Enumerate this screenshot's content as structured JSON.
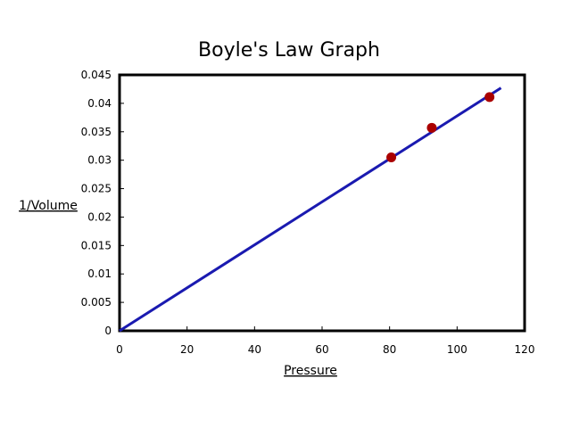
{
  "chart_data": {
    "type": "scatter",
    "title": "Boyle's Law Graph",
    "xlabel": "Pressure",
    "ylabel": "1/Volume",
    "xlim": [
      0,
      120
    ],
    "ylim": [
      0,
      0.045
    ],
    "x_ticks": [
      "0",
      "20",
      "40",
      "60",
      "80",
      "100",
      "120"
    ],
    "y_ticks": [
      "0",
      "0.005",
      "0.01",
      "0.015",
      "0.02",
      "0.025",
      "0.03",
      "0.035",
      "0.04",
      "0.045"
    ],
    "grid": false,
    "points": [
      {
        "x": 80.5,
        "y": 0.0305
      },
      {
        "x": 92.5,
        "y": 0.0357
      },
      {
        "x": 109.6,
        "y": 0.0411
      }
    ],
    "fit_line": {
      "x": [
        0,
        113
      ],
      "y": [
        0,
        0.0427
      ]
    },
    "colors": {
      "points": "#aa0000",
      "line": "#1a1ab0",
      "frame": "#000000"
    }
  }
}
